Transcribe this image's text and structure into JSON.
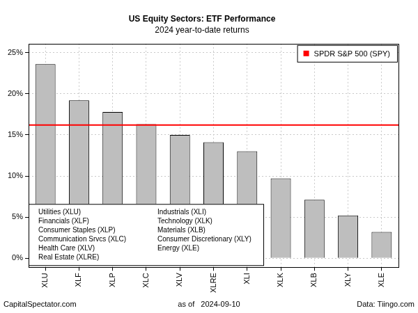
{
  "chart_data": {
    "type": "bar",
    "title": "US Equity Sectors: ETF Performance",
    "subtitle": "2024 year-to-date returns",
    "categories": [
      "XLU",
      "XLF",
      "XLP",
      "XLC",
      "XLV",
      "XLRE",
      "XLI",
      "XLK",
      "XLB",
      "XLY",
      "XLE"
    ],
    "values": [
      23.6,
      19.2,
      17.8,
      16.3,
      15.0,
      14.1,
      13.0,
      9.7,
      7.1,
      5.2,
      3.2
    ],
    "color": "#bebebe",
    "ylim": [
      -1.1,
      26.1
    ],
    "yticks": [
      {
        "value": 0,
        "label": "0%"
      },
      {
        "value": 5,
        "label": "5%"
      },
      {
        "value": 10,
        "label": "10%"
      },
      {
        "value": 15,
        "label": "15%"
      },
      {
        "value": 20,
        "label": "20%"
      },
      {
        "value": 25,
        "label": "25%"
      }
    ],
    "grid": true,
    "legend": "top-right",
    "reference_line": {
      "name": "SPDR S&P 500 (SPY)",
      "value": 16.2,
      "color": "#ff0000"
    },
    "annotations": [
      [
        "Utilities (XLU)",
        "Financials (XLF)",
        "Consumer Staples (XLP)",
        "Communication Srvcs (XLC)",
        "Health Care (XLV)",
        "Real Estate (XLRE)"
      ],
      [
        "Industrials (XLI)",
        "Technology (XLK)",
        "Materials (XLB)",
        "Consumer Discretionary (XLY)",
        "Energy (XLE)"
      ]
    ],
    "footer": {
      "left": "CapitalSpectator.com",
      "center": "as of   2024-09-10",
      "right": "Data: Tiingo.com"
    }
  }
}
